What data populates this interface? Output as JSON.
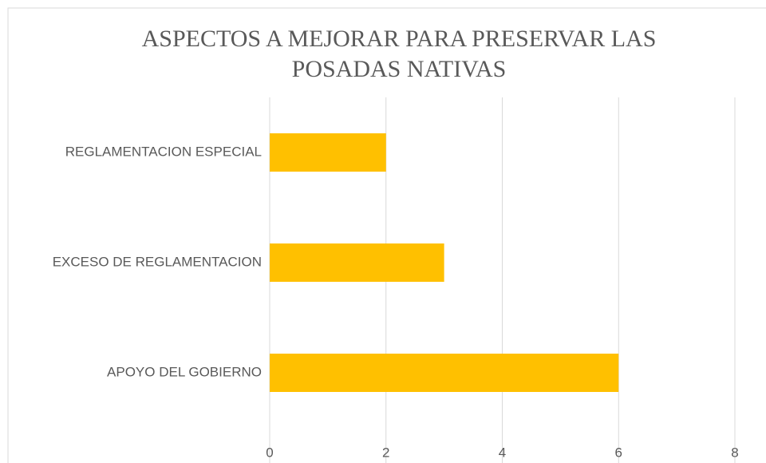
{
  "chart_data": {
    "type": "hbar",
    "title": "ASPECTOS A MEJORAR PARA PRESERVAR LAS POSADAS NATIVAS",
    "categories": [
      "REGLAMENTACION ESPECIAL",
      "EXCESO DE REGLAMENTACION",
      "APOYO DEL GOBIERNO"
    ],
    "values": [
      2,
      3,
      6
    ],
    "color": "#ffc000",
    "xlim": [
      0,
      8
    ],
    "xticks": [
      0,
      2,
      4,
      6,
      8
    ],
    "grid": true
  }
}
